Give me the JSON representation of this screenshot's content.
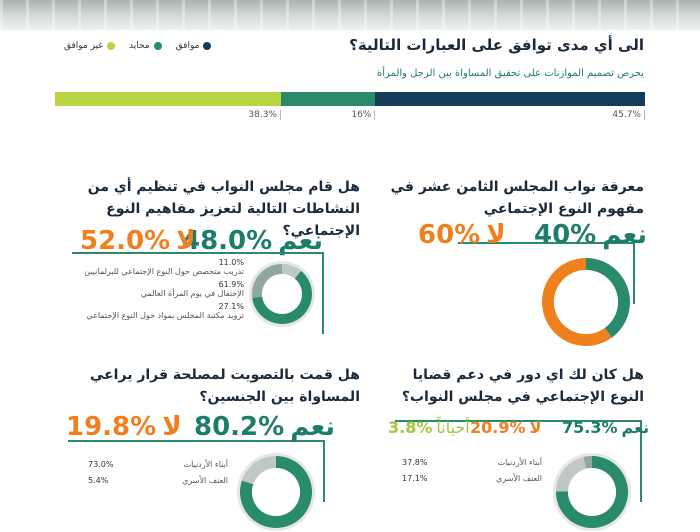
{
  "legend": [
    {
      "label": "موافق",
      "color": "#123c57"
    },
    {
      "label": "محايد",
      "color": "#2a8a6c"
    },
    {
      "label": "غير موافق",
      "color": "#b7d441"
    }
  ],
  "top": {
    "title": "الى أي مدى توافق على العبارات التالية؟",
    "statement": "يحرص تصميم الموازنات على تحقيق المساواة بين الرجل والمرأة"
  },
  "q1": {
    "title": "معرفة نواب المجلس الثامن عشر في مفهوم النوع الإجتماعي",
    "yes_label": "نعم",
    "yes": "40%",
    "no_label": "لا",
    "no": "60%"
  },
  "q2": {
    "title": "هل قام مجلس النواب في تنظيم أي من النشاطات التالية لتعزيز مفاهيم النوع الإجتماعي؟",
    "yes_label": "نعم",
    "yes": "48.0%",
    "no_label": "لا",
    "no": "52.0%",
    "items": [
      {
        "value": "11.0%",
        "label": "تدريب متخصص حول النوع الإجتماعي للبرلمانيين"
      },
      {
        "value": "61.9%",
        "label": "الإحتفال في يوم المرأة العالمي"
      },
      {
        "value": "27.1%",
        "label": "تزويد مكتبة المجلس بمواد حول النوع الإجتماعي"
      }
    ]
  },
  "q3": {
    "title": "هل كان لك اي دور في دعم قضايا النوع الإجتماعي في مجلس النواب؟",
    "yes_label": "نعم",
    "yes": "75.3%",
    "no_label": "لا",
    "no": "20.9%",
    "some_label": "أحياناً",
    "some": "3.8%",
    "items": [
      {
        "value": "37.8%",
        "label": "أبناء الأردنيات"
      },
      {
        "value": "17.1%",
        "label": "العنف الأسري"
      }
    ]
  },
  "q4": {
    "title": "هل قمت بالتصويت لمصلحة قرار يراعي المساواة بين الجنسين؟",
    "yes_label": "نعم",
    "yes": "80.2%",
    "no_label": "لا",
    "no": "19.8%",
    "items": [
      {
        "value": "73.0%",
        "label": "أبناء الأردنيات"
      },
      {
        "value": "5.4%",
        "label": "العنف الأسري"
      }
    ]
  },
  "chart_data": [
    {
      "type": "bar",
      "title": "يحرص تصميم الموازنات على تحقيق المساواة بين الرجل والمرأة",
      "categories": [
        "موافق",
        "محايد",
        "غير موافق"
      ],
      "values": [
        45.7,
        16,
        38.3
      ],
      "labels": [
        "45.7%",
        "16%",
        "38.3%"
      ],
      "colors": [
        "#123c57",
        "#2a8a6c",
        "#b7d441"
      ]
    },
    {
      "type": "pie",
      "categories": [
        "نعم",
        "لا"
      ],
      "values": [
        40,
        60
      ],
      "colors": [
        "#2a8a6c",
        "#f07f1e"
      ]
    },
    {
      "type": "pie",
      "categories": [
        "11.0%",
        "61.9%",
        "27.1%"
      ],
      "values": [
        11.0,
        61.9,
        27.1
      ]
    },
    {
      "type": "pie",
      "categories": [
        "نعم",
        "لا",
        "أحياناً"
      ],
      "values": [
        75.3,
        20.9,
        3.8
      ]
    },
    {
      "type": "pie",
      "categories": [
        "نعم",
        "لا"
      ],
      "values": [
        80.2,
        19.8
      ]
    }
  ]
}
